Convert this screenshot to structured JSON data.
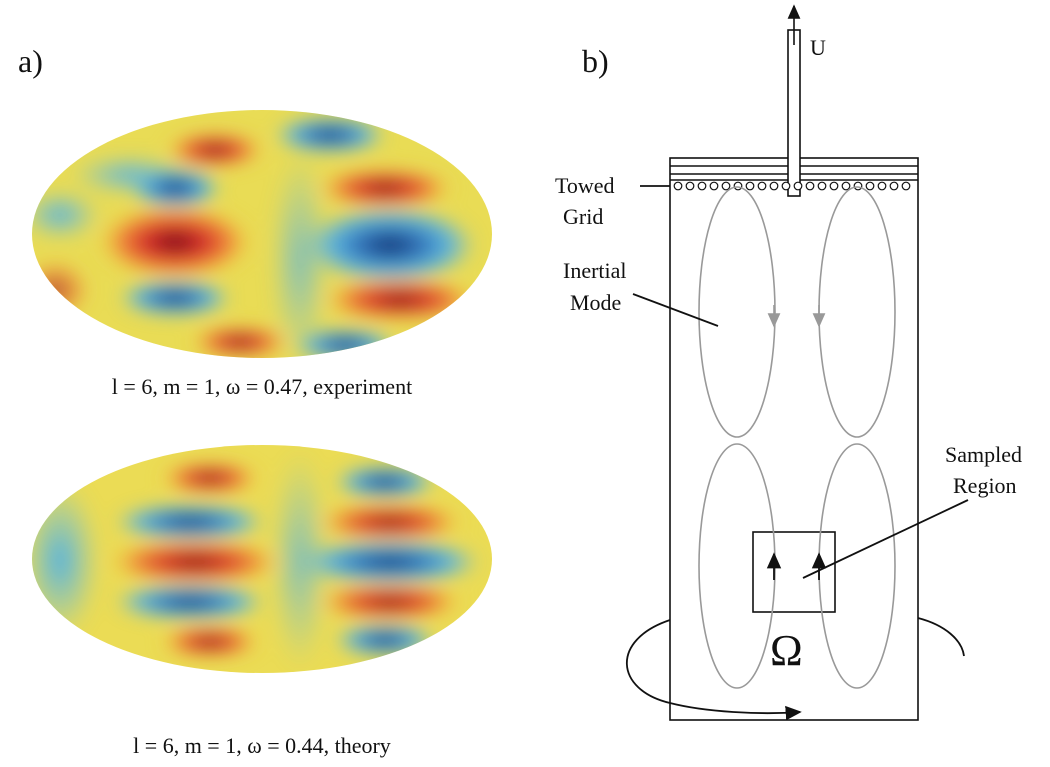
{
  "panels": [
    {
      "label": "a)",
      "captions": [
        "l = 6, m = 1, ω = 0.47, experiment",
        "l = 6, m = 1, ω = 0.44, theory"
      ]
    },
    {
      "label": "b)",
      "labels": {
        "velocity": "U",
        "grid": [
          "Towed",
          "Grid"
        ],
        "mode": [
          "Inertial",
          "Mode"
        ],
        "region": [
          "Sampled",
          "Region"
        ],
        "rotation": "Ω"
      }
    }
  ]
}
